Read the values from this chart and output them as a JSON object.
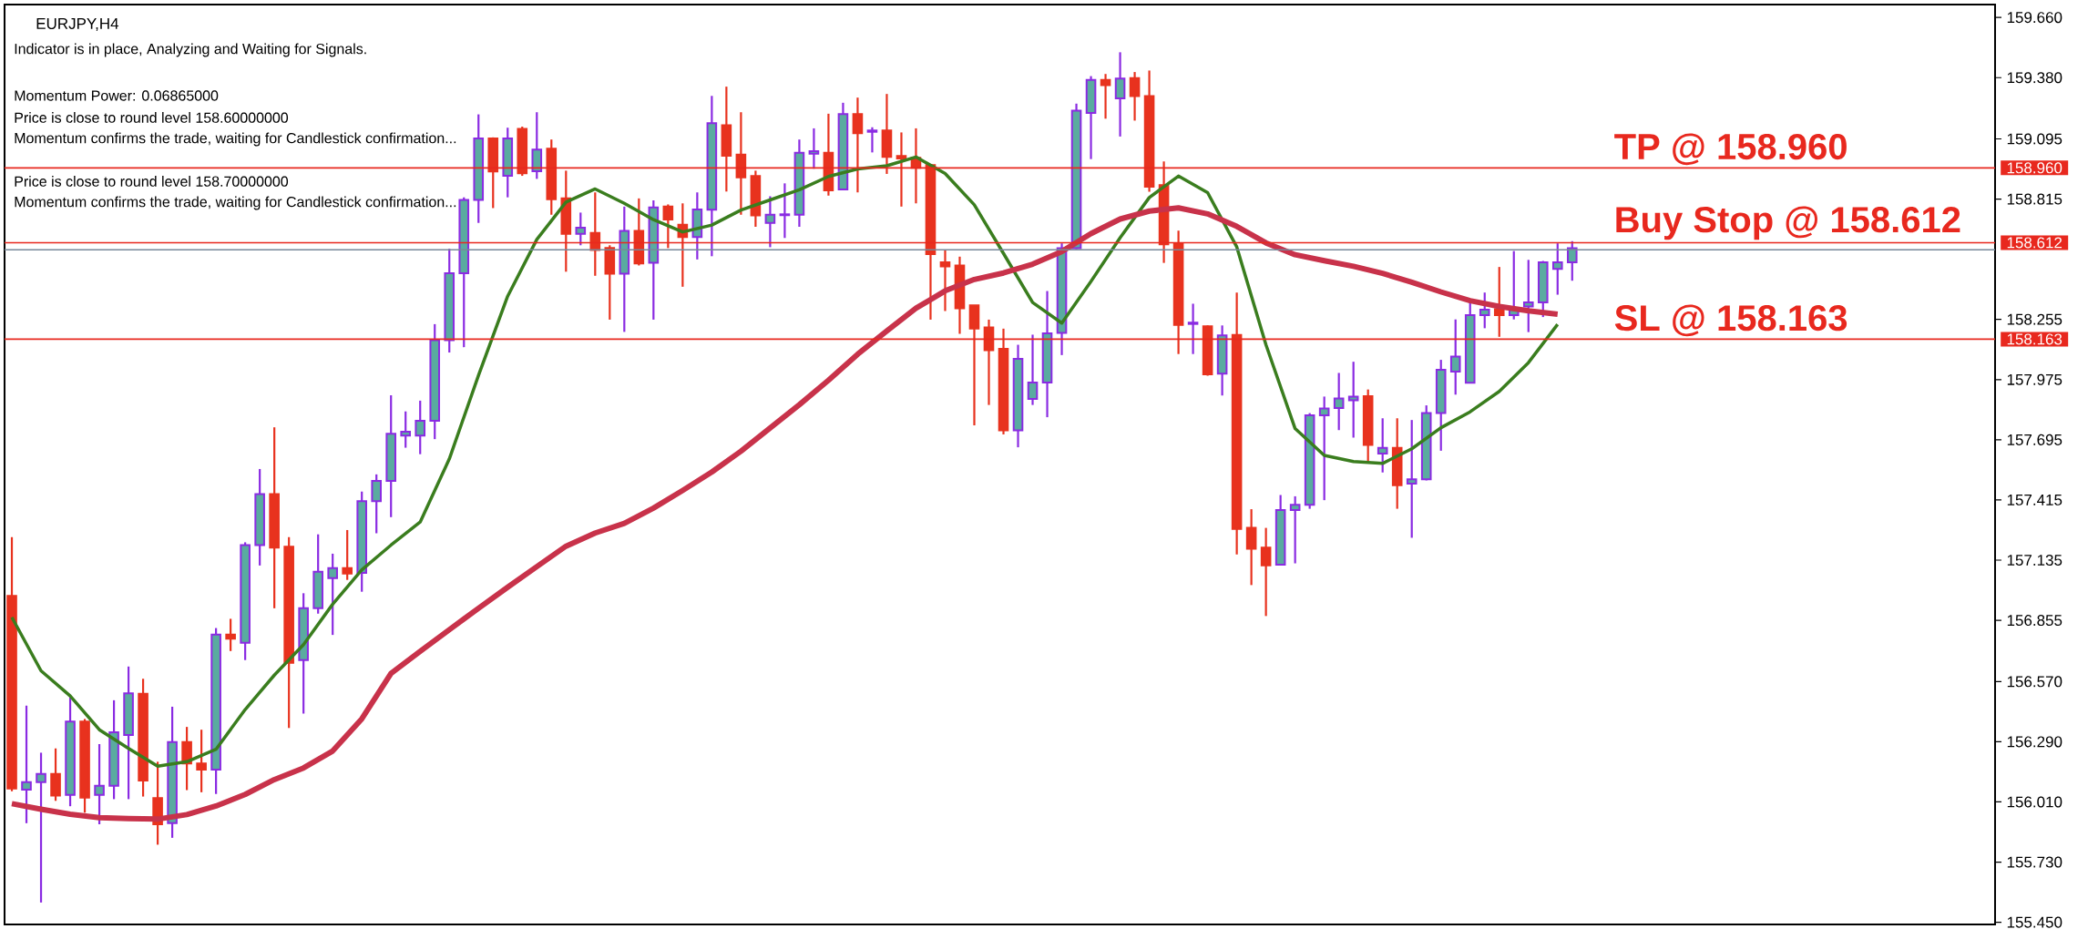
{
  "chart_data": {
    "type": "candlestick",
    "title": "EURJPY,H4",
    "categories": [
      null,
      null,
      null,
      null,
      null,
      null,
      null,
      null,
      null,
      null,
      null,
      null,
      null,
      null,
      null,
      null,
      null,
      null,
      null,
      null,
      null,
      null,
      null,
      null,
      null,
      null,
      null,
      null,
      null,
      null,
      null,
      null,
      null,
      null,
      null,
      null,
      null,
      null,
      null,
      null,
      null,
      null,
      null,
      null,
      null,
      null,
      null,
      null,
      null,
      null,
      null,
      null,
      null,
      null,
      null,
      null,
      null,
      null,
      null,
      null,
      null,
      null,
      null,
      null,
      null,
      null,
      null,
      null,
      null,
      null,
      null,
      null,
      null,
      null,
      null,
      null,
      null,
      null,
      null,
      null,
      null,
      null,
      null,
      null,
      null,
      null,
      null,
      null,
      null,
      null,
      null,
      null,
      null,
      null,
      null,
      null,
      null,
      null,
      null,
      null,
      null,
      null,
      null,
      null,
      null,
      null,
      null,
      null
    ],
    "ohlc": [
      [
        156.969,
        157.242,
        156.06,
        156.072
      ],
      [
        156.067,
        156.458,
        155.911,
        156.102
      ],
      [
        156.102,
        156.239,
        155.542,
        156.14
      ],
      [
        156.14,
        156.259,
        156.015,
        156.04
      ],
      [
        156.043,
        156.496,
        155.99,
        156.384
      ],
      [
        156.384,
        156.396,
        155.96,
        156.03
      ],
      [
        156.043,
        156.279,
        155.906,
        156.085
      ],
      [
        156.085,
        156.483,
        156.023,
        156.334
      ],
      [
        156.321,
        156.64,
        156.023,
        156.515
      ],
      [
        156.513,
        156.583,
        156.035,
        156.11
      ],
      [
        156.028,
        156.197,
        155.811,
        155.906
      ],
      [
        155.911,
        156.453,
        155.843,
        156.289
      ],
      [
        156.289,
        156.359,
        156.065,
        156.189
      ],
      [
        156.189,
        156.346,
        156.055,
        156.16
      ],
      [
        156.16,
        156.819,
        156.047,
        156.789
      ],
      [
        156.789,
        156.862,
        156.712,
        156.769
      ],
      [
        156.75,
        157.218,
        156.67,
        157.205
      ],
      [
        157.205,
        157.559,
        157.11,
        157.442
      ],
      [
        157.442,
        157.753,
        156.911,
        157.193
      ],
      [
        157.198,
        157.242,
        156.354,
        156.657
      ],
      [
        156.67,
        156.981,
        156.421,
        156.911
      ],
      [
        156.911,
        157.255,
        156.886,
        157.081
      ],
      [
        157.051,
        157.165,
        156.787,
        157.098
      ],
      [
        157.098,
        157.275,
        157.043,
        157.073
      ],
      [
        157.076,
        157.454,
        156.988,
        157.409
      ],
      [
        157.409,
        157.534,
        157.26,
        157.504
      ],
      [
        157.504,
        157.902,
        157.335,
        157.723
      ],
      [
        157.715,
        157.827,
        157.658,
        157.733
      ],
      [
        157.715,
        157.877,
        157.628,
        157.783
      ],
      [
        157.783,
        158.233,
        157.698,
        158.158
      ],
      [
        158.158,
        158.584,
        158.101,
        158.47
      ],
      [
        158.47,
        158.823,
        158.126,
        158.811
      ],
      [
        158.811,
        159.209,
        158.704,
        159.097
      ],
      [
        159.097,
        159.102,
        158.773,
        158.943
      ],
      [
        158.923,
        159.147,
        158.823,
        159.097
      ],
      [
        159.142,
        159.152,
        158.923,
        158.935
      ],
      [
        158.945,
        159.219,
        158.909,
        159.045
      ],
      [
        159.049,
        159.092,
        158.742,
        158.814
      ],
      [
        158.818,
        158.947,
        158.477,
        158.653
      ],
      [
        158.653,
        158.752,
        158.6,
        158.682
      ],
      [
        158.657,
        158.846,
        158.458,
        158.578
      ],
      [
        158.587,
        158.6,
        158.254,
        158.468
      ],
      [
        158.468,
        158.78,
        158.197,
        158.667
      ],
      [
        158.667,
        158.818,
        158.506,
        158.515
      ],
      [
        158.519,
        158.809,
        158.254,
        158.776
      ],
      [
        158.78,
        158.79,
        158.587,
        158.72
      ],
      [
        158.695,
        158.795,
        158.407,
        158.638
      ],
      [
        158.638,
        158.846,
        158.534,
        158.767
      ],
      [
        158.765,
        159.295,
        158.549,
        159.168
      ],
      [
        159.159,
        159.338,
        158.85,
        159.017
      ],
      [
        159.022,
        159.219,
        158.742,
        158.916
      ],
      [
        158.922,
        158.947,
        158.686,
        158.739
      ],
      [
        158.704,
        158.828,
        158.591,
        158.742
      ],
      [
        158.74,
        158.888,
        158.634,
        158.744
      ],
      [
        158.742,
        159.092,
        158.686,
        159.03
      ],
      [
        159.026,
        159.144,
        158.956,
        159.038
      ],
      [
        159.03,
        159.212,
        158.831,
        158.856
      ],
      [
        158.86,
        159.263,
        158.856,
        159.21
      ],
      [
        159.21,
        159.287,
        158.846,
        159.121
      ],
      [
        159.128,
        159.149,
        159.032,
        159.134
      ],
      [
        159.134,
        159.304,
        158.932,
        159.011
      ],
      [
        159.015,
        159.125,
        158.78,
        159.004
      ],
      [
        159.007,
        159.144,
        158.795,
        158.96
      ],
      [
        158.973,
        158.977,
        158.254,
        158.559
      ],
      [
        158.521,
        158.576,
        158.294,
        158.502
      ],
      [
        158.506,
        158.547,
        158.188,
        158.307
      ],
      [
        158.32,
        158.32,
        157.762,
        158.212
      ],
      [
        158.218,
        158.254,
        157.857,
        158.112
      ],
      [
        158.118,
        158.212,
        157.72,
        157.739
      ],
      [
        157.739,
        158.137,
        157.66,
        158.071
      ],
      [
        157.885,
        158.184,
        157.857,
        157.961
      ],
      [
        157.961,
        158.387,
        157.8,
        158.19
      ],
      [
        158.192,
        158.609,
        158.089,
        158.586
      ],
      [
        158.586,
        159.259,
        158.582,
        159.226
      ],
      [
        159.216,
        159.387,
        159.001,
        159.369
      ],
      [
        159.369,
        159.397,
        159.189,
        159.345
      ],
      [
        159.284,
        159.498,
        159.106,
        159.376
      ],
      [
        159.378,
        159.406,
        159.18,
        159.294
      ],
      [
        159.294,
        159.413,
        158.849,
        158.872
      ],
      [
        158.88,
        158.99,
        158.518,
        158.604
      ],
      [
        158.609,
        158.668,
        158.094,
        158.229
      ],
      [
        158.234,
        158.328,
        158.094,
        158.24
      ],
      [
        158.223,
        158.227,
        157.993,
        157.999
      ],
      [
        158.003,
        158.227,
        157.901,
        158.181
      ],
      [
        158.183,
        158.38,
        157.162,
        157.28
      ],
      [
        157.285,
        157.372,
        157.019,
        157.188
      ],
      [
        157.193,
        157.285,
        156.875,
        157.111
      ],
      [
        157.114,
        157.438,
        157.111,
        157.368
      ],
      [
        157.368,
        157.432,
        157.12,
        157.392
      ],
      [
        157.392,
        157.819,
        157.374,
        157.809
      ],
      [
        157.809,
        157.896,
        157.414,
        157.841
      ],
      [
        157.843,
        158.006,
        157.74,
        157.887
      ],
      [
        157.879,
        158.058,
        157.705,
        157.896
      ],
      [
        157.898,
        157.929,
        157.585,
        157.671
      ],
      [
        157.631,
        157.795,
        157.543,
        157.657
      ],
      [
        157.657,
        157.795,
        157.374,
        157.484
      ],
      [
        157.491,
        157.787,
        157.239,
        157.511
      ],
      [
        157.511,
        157.855,
        157.506,
        157.819
      ],
      [
        157.819,
        158.067,
        157.644,
        158.021
      ],
      [
        158.012,
        158.255,
        157.905,
        158.082
      ],
      [
        157.96,
        158.339,
        157.957,
        158.275
      ],
      [
        158.275,
        158.38,
        158.214,
        158.3
      ],
      [
        158.302,
        158.499,
        158.174,
        158.275
      ],
      [
        158.275,
        158.573,
        158.255,
        158.302
      ],
      [
        158.315,
        158.532,
        158.196,
        158.334
      ],
      [
        158.334,
        158.527,
        158.266,
        158.521
      ],
      [
        158.49,
        158.609,
        158.37,
        158.521
      ],
      [
        158.521,
        158.619,
        158.435,
        158.586
      ]
    ],
    "series": [
      {
        "type": "line",
        "color": "#3a7d1e",
        "values": [
          156.869,
          null,
          156.62,
          null,
          156.503,
          null,
          156.346,
          null,
          156.259,
          null,
          156.176,
          null,
          156.197,
          null,
          156.255,
          null,
          156.44,
          null,
          156.6,
          null,
          156.742,
          null,
          156.93,
          null,
          157.09,
          null,
          157.205,
          null,
          157.312,
          null,
          157.606,
          null,
          157.995,
          null,
          158.363,
          null,
          158.627,
          null,
          158.801,
          null,
          158.862,
          null,
          158.795,
          null,
          158.719,
          null,
          158.662,
          null,
          158.694,
          null,
          158.764,
          null,
          158.811,
          null,
          158.858,
          null,
          158.92,
          null,
          158.955,
          null,
          158.97,
          null,
          159.011,
          null,
          158.934,
          null,
          158.788,
          null,
          158.562,
          null,
          158.334,
          null,
          158.238,
          null,
          158.432,
          null,
          158.635,
          null,
          158.822,
          null,
          158.922,
          null,
          158.845,
          null,
          158.592,
          null,
          158.137,
          null,
          157.747,
          null,
          157.622,
          null,
          157.594,
          null,
          157.585,
          null,
          157.653,
          null,
          157.751,
          null,
          157.825,
          null,
          157.92,
          null,
          158.054,
          null,
          158.232,
          null
        ]
      },
      {
        "type": "line",
        "color": "#c8324a",
        "values": [
          156.002,
          null,
          155.976,
          null,
          155.953,
          null,
          155.937,
          null,
          155.933,
          null,
          155.93,
          null,
          155.951,
          null,
          155.991,
          null,
          156.045,
          null,
          156.114,
          null,
          156.168,
          null,
          156.247,
          null,
          156.397,
          null,
          156.608,
          null,
          156.711,
          null,
          156.811,
          null,
          156.911,
          null,
          157.009,
          null,
          157.105,
          null,
          157.2,
          null,
          157.261,
          null,
          157.306,
          null,
          157.377,
          null,
          157.459,
          null,
          157.545,
          null,
          157.642,
          null,
          157.75,
          null,
          157.858,
          null,
          157.972,
          null,
          158.093,
          null,
          158.201,
          null,
          158.307,
          null,
          158.388,
          null,
          158.441,
          null,
          158.471,
          null,
          158.512,
          null,
          158.571,
          null,
          158.654,
          null,
          158.722,
          null,
          158.759,
          null,
          158.774,
          null,
          158.746,
          null,
          158.688,
          null,
          158.611,
          null,
          158.556,
          null,
          158.528,
          null,
          158.502,
          null,
          158.469,
          null,
          158.428,
          null,
          158.383,
          null,
          158.342,
          null,
          158.315,
          null,
          158.295,
          null,
          158.279,
          null
        ]
      }
    ],
    "ylim": [
      155.44,
      159.72
    ],
    "yticks": [
      {
        "value": 159.66,
        "label": "159.660"
      },
      {
        "value": 159.38,
        "label": "159.380"
      },
      159.095,
      {
        "value": 158.96,
        "label": "158.960"
      },
      158.815,
      158.612,
      158.255,
      158.163,
      157.975,
      157.695,
      157.415,
      157.135,
      156.855,
      {
        "value": 156.57,
        "label": "156.570"
      },
      {
        "value": 156.29,
        "label": "156.290"
      },
      {
        "value": 156.01,
        "label": "156.010"
      },
      {
        "value": 155.73,
        "label": "155.730"
      },
      {
        "value": 155.45,
        "label": "155.450"
      }
    ],
    "ref_lines": [
      {
        "axis": "y",
        "value": 158.96,
        "label": "TP @ 158.960",
        "color": "#e8281e"
      },
      {
        "axis": "y",
        "value": 158.612,
        "label": "Buy Stop @ 158.612",
        "color": "#e8281e"
      },
      {
        "axis": "y",
        "value": 158.579,
        "color": "#778899"
      },
      {
        "axis": "y",
        "value": 158.163,
        "label": "SL @ 158.163",
        "color": "#e8281e"
      }
    ],
    "annotations": [
      "Indicator is in place, Analyzing and Waiting for Signals.",
      "Momentum Power: 0.06865000",
      "Price is close to round level 158.60000000",
      "Momentum confirms the trade, waiting for Candlestick confirmation...",
      "Price is close to round level 158.70000000",
      "Momentum confirms the trade, waiting for Candlestick confirmation..."
    ]
  }
}
